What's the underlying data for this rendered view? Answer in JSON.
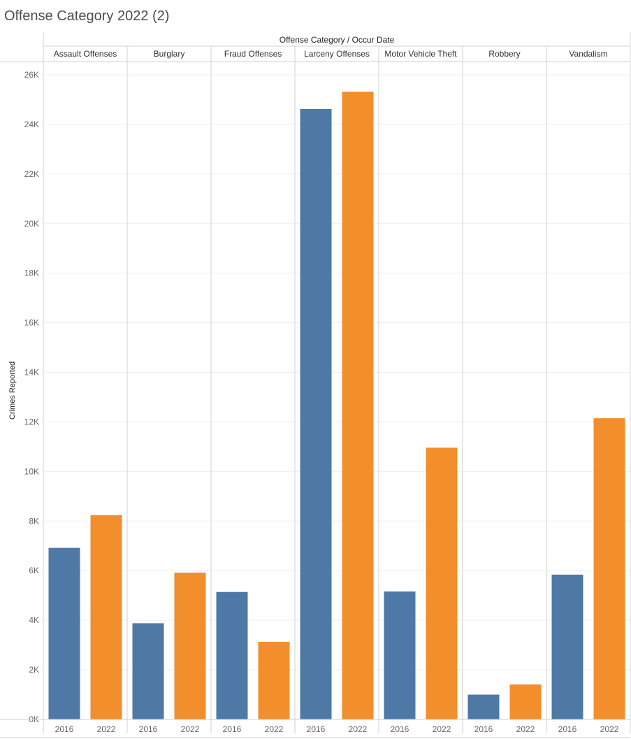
{
  "page_title": "Offense Category 2022 (2)",
  "chart_data": {
    "type": "bar",
    "column_header": "Offense Category / Occur Date",
    "ylabel": "Crimes Reported",
    "ylim": [
      0,
      26500
    ],
    "yticks": [
      0,
      2000,
      4000,
      6000,
      8000,
      10000,
      12000,
      14000,
      16000,
      18000,
      20000,
      22000,
      24000,
      26000
    ],
    "ytick_labels": [
      "0K",
      "2K",
      "4K",
      "6K",
      "8K",
      "10K",
      "12K",
      "14K",
      "16K",
      "18K",
      "20K",
      "22K",
      "24K",
      "26K"
    ],
    "grid": true,
    "categories": [
      "Assault Offenses",
      "Burglary",
      "Fraud Offenses",
      "Larceny Offenses",
      "Motor Vehicle Theft",
      "Robbery",
      "Vandalism"
    ],
    "sub_categories": [
      "2016",
      "2022"
    ],
    "series": [
      {
        "name": "2016",
        "color": "#4e79a7",
        "values": [
          6920,
          3880,
          5140,
          24620,
          5160,
          1000,
          5840
        ]
      },
      {
        "name": "2022",
        "color": "#f28e2b",
        "values": [
          8240,
          5920,
          3130,
          25320,
          10960,
          1410,
          12150
        ]
      }
    ]
  }
}
